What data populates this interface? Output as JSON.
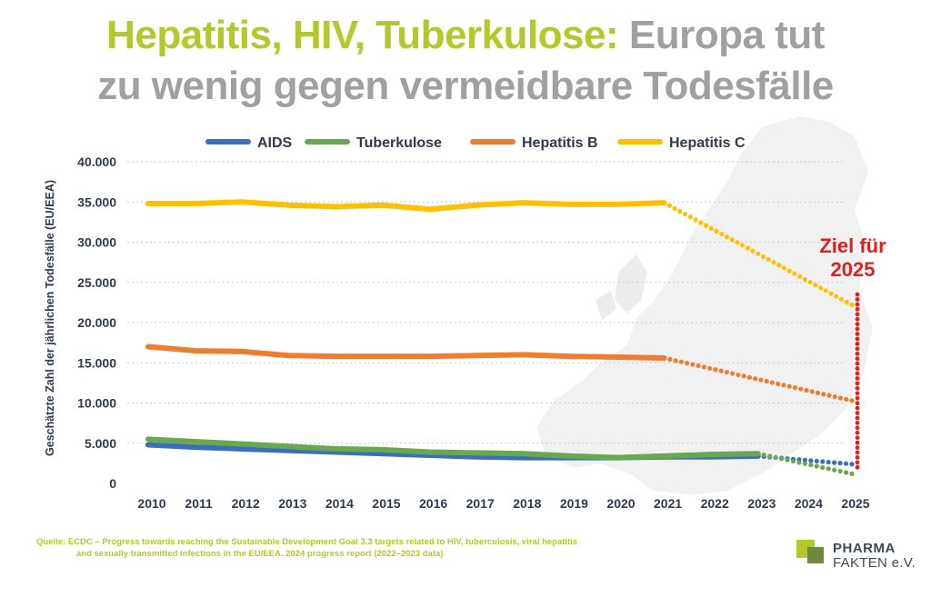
{
  "title": {
    "line1_green": "Hepatitis, HIV, Tuberkulose:",
    "line1_gray": " Europa tut",
    "line2_gray": "zu wenig gegen vermeidbare Todesfälle"
  },
  "colors": {
    "title_green": "#b5c82a",
    "title_gray": "#a0a0a0",
    "aids": "#3a6fbe",
    "tuberkulose": "#6aa84f",
    "hepatitis_b": "#ed7d31",
    "hepatitis_c": "#ffc000",
    "target": "#e02020"
  },
  "target_label": [
    "Ziel für",
    "2025"
  ],
  "source": {
    "line1": "Quelle: ECDC – Progress towards reaching the Sustainable Development Goal 3.3 targets related to HIV, tuberculosis, viral hepatitis",
    "line2": "and sexually transmitted infections in the EU/EEA. 2024 progress report (2022–2023 data)"
  },
  "logo": {
    "line1": "PHARMA",
    "line2": "FAKTEN e.V."
  },
  "chart_data": {
    "type": "line",
    "ylabel": "Geschätzte Zahl der jährlichen Todesfälle (EU/EEA)",
    "ylim": [
      0,
      40000
    ],
    "yticks": [
      0,
      5000,
      10000,
      15000,
      20000,
      25000,
      30000,
      35000,
      40000
    ],
    "ytick_labels": [
      "0",
      "5.000",
      "10.000",
      "15.000",
      "20.000",
      "25.000",
      "30.000",
      "35.000",
      "40.000"
    ],
    "x": [
      2010,
      2011,
      2012,
      2013,
      2014,
      2015,
      2016,
      2017,
      2018,
      2019,
      2020,
      2021,
      2022,
      2023,
      2024,
      2025
    ],
    "legend_position": "top",
    "grid": "horizontal",
    "series": [
      {
        "name": "AIDS",
        "color_key": "aids",
        "actual_x": [
          2010,
          2011,
          2012,
          2013,
          2014,
          2015,
          2016,
          2017,
          2018,
          2019,
          2020,
          2021,
          2022,
          2023
        ],
        "actual_y": [
          4800,
          4500,
          4300,
          4100,
          3900,
          3700,
          3500,
          3300,
          3200,
          3200,
          3200,
          3300,
          3300,
          3400
        ],
        "target_x": [
          2023,
          2025
        ],
        "target_y": [
          3400,
          2400
        ]
      },
      {
        "name": "Tuberkulose",
        "color_key": "tuberkulose",
        "actual_x": [
          2010,
          2011,
          2012,
          2013,
          2014,
          2015,
          2016,
          2017,
          2018,
          2019,
          2020,
          2021,
          2022,
          2023
        ],
        "actual_y": [
          5500,
          5200,
          4900,
          4600,
          4300,
          4200,
          3900,
          3800,
          3700,
          3400,
          3200,
          3400,
          3600,
          3700
        ],
        "target_x": [
          2023,
          2025
        ],
        "target_y": [
          3700,
          1200
        ]
      },
      {
        "name": "Hepatitis B",
        "color_key": "hepatitis_b",
        "actual_x": [
          2010,
          2011,
          2012,
          2013,
          2014,
          2015,
          2016,
          2017,
          2018,
          2019,
          2020,
          2021
        ],
        "actual_y": [
          17000,
          16500,
          16400,
          15900,
          15800,
          15800,
          15800,
          15900,
          16000,
          15800,
          15700,
          15600
        ],
        "target_x": [
          2021,
          2025
        ],
        "target_y": [
          15600,
          10300
        ]
      },
      {
        "name": "Hepatitis C",
        "color_key": "hepatitis_c",
        "actual_x": [
          2010,
          2011,
          2012,
          2013,
          2014,
          2015,
          2016,
          2017,
          2018,
          2019,
          2020,
          2021
        ],
        "actual_y": [
          34800,
          34800,
          35000,
          34600,
          34400,
          34600,
          34100,
          34600,
          34900,
          34700,
          34700,
          34900
        ],
        "target_x": [
          2021,
          2025
        ],
        "target_y": [
          34900,
          22200
        ]
      }
    ],
    "target_range": {
      "year": 2025,
      "y_from": 2000,
      "y_to": 23500
    }
  }
}
